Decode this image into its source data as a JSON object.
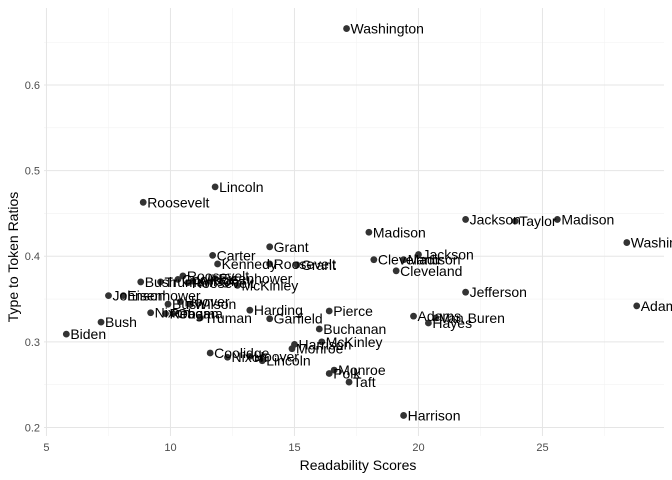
{
  "chart_data": {
    "type": "scatter",
    "xlabel": "Readability Scores",
    "ylabel": "Type to Token Ratios",
    "xlim": [
      4.9,
      29.9
    ],
    "ylim": [
      0.19,
      0.69
    ],
    "x_ticks": [
      5,
      10,
      15,
      20,
      25
    ],
    "y_ticks": [
      0.2,
      0.3,
      0.4,
      0.5,
      0.6
    ],
    "x_minor": [
      7.5,
      12.5,
      17.5,
      22.5,
      27.5
    ],
    "y_minor": [
      0.25,
      0.35,
      0.45,
      0.55,
      0.65
    ],
    "grid": true,
    "point_color": "#333333",
    "points": [
      {
        "label": "Washington",
        "x": 17.1,
        "y": 0.666
      },
      {
        "label": "Lincoln",
        "x": 11.8,
        "y": 0.481
      },
      {
        "label": "Roosevelt",
        "x": 8.9,
        "y": 0.463
      },
      {
        "label": "Jackson",
        "x": 21.9,
        "y": 0.443
      },
      {
        "label": "Taylor",
        "x": 23.9,
        "y": 0.441
      },
      {
        "label": "Madison",
        "x": 25.6,
        "y": 0.443
      },
      {
        "label": "Madison",
        "x": 18.0,
        "y": 0.428
      },
      {
        "label": "Washington",
        "x": 28.4,
        "y": 0.416
      },
      {
        "label": "Grant",
        "x": 14.0,
        "y": 0.411
      },
      {
        "label": "Carter",
        "x": 11.7,
        "y": 0.401
      },
      {
        "label": "Jackson",
        "x": 20.0,
        "y": 0.402
      },
      {
        "label": "Cleveland",
        "x": 18.2,
        "y": 0.396
      },
      {
        "label": "Madison",
        "x": 19.4,
        "y": 0.396
      },
      {
        "label": "Kennedy",
        "x": 11.9,
        "y": 0.391
      },
      {
        "label": "Roosevelt",
        "x": 14.0,
        "y": 0.391
      },
      {
        "label": "Grant",
        "x": 15.1,
        "y": 0.39
      },
      {
        "label": "Cleveland",
        "x": 19.1,
        "y": 0.383
      },
      {
        "label": "Roosevelt",
        "x": 10.5,
        "y": 0.377
      },
      {
        "label": "Coolidge",
        "x": 10.3,
        "y": 0.373
      },
      {
        "label": "Wilson",
        "x": 10.9,
        "y": 0.371
      },
      {
        "label": "Eisenhower",
        "x": 11.8,
        "y": 0.374
      },
      {
        "label": "Truman",
        "x": 9.6,
        "y": 0.37
      },
      {
        "label": "Roosevelt",
        "x": 10.7,
        "y": 0.369
      },
      {
        "label": "Bush",
        "x": 8.8,
        "y": 0.37
      },
      {
        "label": "McKinley",
        "x": 12.7,
        "y": 0.366
      },
      {
        "label": "Jefferson",
        "x": 21.9,
        "y": 0.358
      },
      {
        "label": "Johnson",
        "x": 7.5,
        "y": 0.354
      },
      {
        "label": "Eisenhower",
        "x": 8.1,
        "y": 0.354
      },
      {
        "label": "Hoover",
        "x": 10.4,
        "y": 0.347
      },
      {
        "label": "Bush",
        "x": 9.9,
        "y": 0.344
      },
      {
        "label": "Wilson",
        "x": 10.8,
        "y": 0.344
      },
      {
        "label": "Adams",
        "x": 28.8,
        "y": 0.342
      },
      {
        "label": "Harding",
        "x": 13.2,
        "y": 0.337
      },
      {
        "label": "Nixon",
        "x": 9.2,
        "y": 0.334
      },
      {
        "label": "Reagan",
        "x": 9.8,
        "y": 0.333
      },
      {
        "label": "Obama",
        "x": 10.1,
        "y": 0.333
      },
      {
        "label": "Pierce",
        "x": 16.4,
        "y": 0.336
      },
      {
        "label": "Adams",
        "x": 19.8,
        "y": 0.33
      },
      {
        "label": "Van Buren",
        "x": 20.7,
        "y": 0.328
      },
      {
        "label": "Truman",
        "x": 11.2,
        "y": 0.328
      },
      {
        "label": "Garfield",
        "x": 14.0,
        "y": 0.327
      },
      {
        "label": "Hayes",
        "x": 20.4,
        "y": 0.322
      },
      {
        "label": "Bush",
        "x": 7.2,
        "y": 0.323
      },
      {
        "label": "Buchanan",
        "x": 16.0,
        "y": 0.315
      },
      {
        "label": "Biden",
        "x": 5.8,
        "y": 0.309
      },
      {
        "label": "McKinley",
        "x": 16.1,
        "y": 0.3
      },
      {
        "label": "Harrison",
        "x": 15.0,
        "y": 0.297
      },
      {
        "label": "Monroe",
        "x": 14.9,
        "y": 0.292
      },
      {
        "label": "Coolidge",
        "x": 11.6,
        "y": 0.287
      },
      {
        "label": "Nixon",
        "x": 12.3,
        "y": 0.282
      },
      {
        "label": "Hoover",
        "x": 13.2,
        "y": 0.283
      },
      {
        "label": "Lincoln",
        "x": 13.7,
        "y": 0.278
      },
      {
        "label": "Monroe",
        "x": 16.6,
        "y": 0.267
      },
      {
        "label": "Polk",
        "x": 16.4,
        "y": 0.263
      },
      {
        "label": "Taft",
        "x": 17.2,
        "y": 0.253
      },
      {
        "label": "Harrison",
        "x": 19.4,
        "y": 0.214
      }
    ]
  }
}
